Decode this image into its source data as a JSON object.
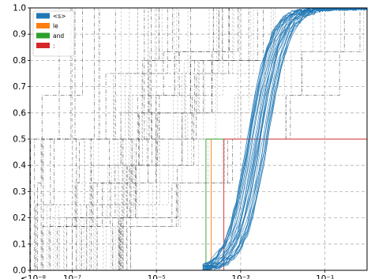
{
  "chart_data": {
    "type": "line",
    "title": "",
    "xlabel": "",
    "ylabel": "",
    "x_scale": "log",
    "xlim": [
      1e-08,
      1
    ],
    "ylim": [
      0.0,
      1.0
    ],
    "grid": true,
    "legend_position": "top-left",
    "x_tick_labels": [
      "≤10⁻⁸",
      "10⁻⁷",
      "10⁻⁵",
      "10⁻³",
      "10⁻¹"
    ],
    "y_tick_labels": [
      "0.0",
      "0.1",
      "0.2",
      "0.3",
      "0.4",
      "0.5",
      "0.6",
      "0.7",
      "0.8",
      "0.9",
      "1.0"
    ],
    "legend": [
      {
        "label": "<s>",
        "color": "#1f77b4"
      },
      {
        "label": "le",
        "color": "#ff7f0e"
      },
      {
        "label": "and",
        "color": "#2ca02c"
      },
      {
        "label": ":",
        "color": "#d62728"
      }
    ],
    "series": [
      {
        "name": "<s>",
        "color": "#1f77b4",
        "description_curves": 30,
        "x": [
          0.00015,
          0.0003,
          0.0006,
          0.001,
          0.0015,
          0.002,
          0.003,
          0.004,
          0.006,
          0.01,
          0.03,
          1.0
        ],
        "y": [
          0.0,
          0.02,
          0.08,
          0.2,
          0.35,
          0.5,
          0.65,
          0.78,
          0.88,
          0.95,
          0.98,
          1.0
        ]
      },
      {
        "name": "le",
        "color": "#ff7f0e",
        "x": [
          0.0002,
          0.0002,
          1.0
        ],
        "y": [
          0.0,
          0.5,
          0.5
        ]
      },
      {
        "name": "and",
        "color": "#2ca02c",
        "x": [
          0.00015,
          0.00015,
          1.0
        ],
        "y": [
          0.0,
          0.5,
          0.5
        ]
      },
      {
        "name": ":",
        "color": "#d62728",
        "x": [
          0.0004,
          0.0004,
          1.0
        ],
        "y": [
          0.0,
          0.5,
          0.5
        ]
      }
    ],
    "background_lines_color": "#000000"
  }
}
